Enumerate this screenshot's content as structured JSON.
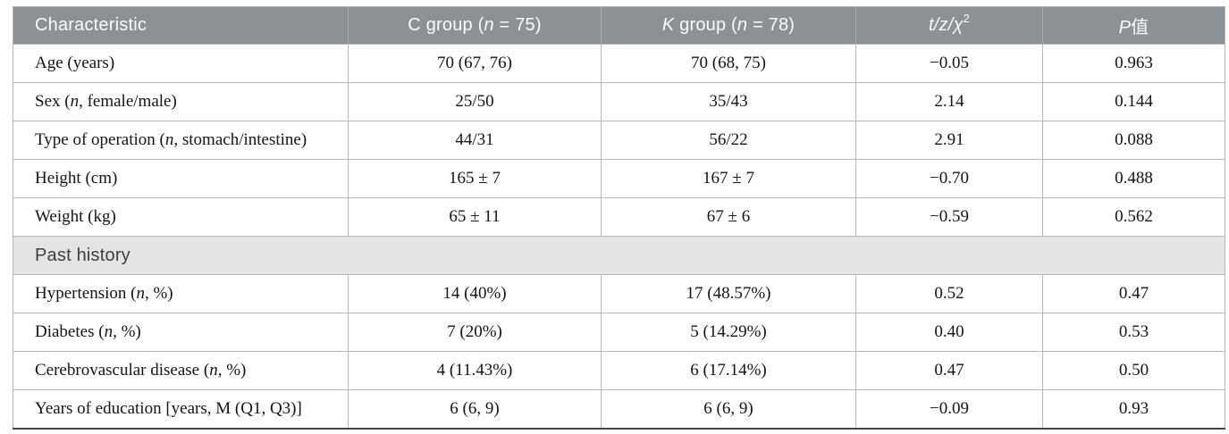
{
  "colors": {
    "header_bg": "#8c9196",
    "header_text": "#fafbfb",
    "header_divider": "#a9adb1",
    "section_bg": "#e3e4e5",
    "section_text": "#3e3e3e",
    "grid_line": "#b5b9bc",
    "bottom_border": "#45484a",
    "body_text": "#141414"
  },
  "table": {
    "columns": [
      {
        "id": "characteristic",
        "align": "left",
        "segments": [
          {
            "t": "Characteristic"
          }
        ]
      },
      {
        "id": "c-group",
        "align": "center",
        "segments": [
          {
            "t": "C group ("
          },
          {
            "t": "n",
            "i": true
          },
          {
            "t": " = 75)"
          }
        ]
      },
      {
        "id": "k-group",
        "align": "center",
        "segments": [
          {
            "t": "K",
            "i": true
          },
          {
            "t": " group ("
          },
          {
            "t": "n",
            "i": true
          },
          {
            "t": " = 78)"
          }
        ]
      },
      {
        "id": "statistic",
        "align": "center",
        "segments": [
          {
            "t": "t/z/χ",
            "i": true
          },
          {
            "t": "2",
            "sup": true
          }
        ]
      },
      {
        "id": "p-value",
        "align": "center",
        "segments": [
          {
            "t": "P",
            "i": true
          },
          {
            "t": "值"
          }
        ]
      }
    ],
    "rows": [
      {
        "type": "data",
        "label": [
          {
            "t": "Age (years)"
          }
        ],
        "values": [
          "70 (67, 76)",
          "70 (68, 75)",
          "−0.05",
          "0.963"
        ]
      },
      {
        "type": "data",
        "label": [
          {
            "t": "Sex ("
          },
          {
            "t": "n",
            "i": true
          },
          {
            "t": ", female/male)"
          }
        ],
        "values": [
          "25/50",
          "35/43",
          "2.14",
          "0.144"
        ]
      },
      {
        "type": "data",
        "label": [
          {
            "t": "Type of operation ("
          },
          {
            "t": "n",
            "i": true
          },
          {
            "t": ", stomach/intestine)"
          }
        ],
        "values": [
          "44/31",
          "56/22",
          "2.91",
          "0.088"
        ]
      },
      {
        "type": "data",
        "label": [
          {
            "t": "Height (cm)"
          }
        ],
        "values": [
          "165 ± 7",
          "167 ± 7",
          "−0.70",
          "0.488"
        ]
      },
      {
        "type": "data",
        "label": [
          {
            "t": "Weight (kg)"
          }
        ],
        "values": [
          "65 ± 11",
          "67 ± 6",
          "−0.59",
          "0.562"
        ]
      },
      {
        "type": "section",
        "label": [
          {
            "t": "Past history"
          }
        ]
      },
      {
        "type": "data",
        "label": [
          {
            "t": "Hypertension ("
          },
          {
            "t": "n",
            "i": true
          },
          {
            "t": ", %)"
          }
        ],
        "values": [
          "14 (40%)",
          "17 (48.57%)",
          "0.52",
          "0.47"
        ]
      },
      {
        "type": "data",
        "label": [
          {
            "t": "Diabetes ("
          },
          {
            "t": "n",
            "i": true
          },
          {
            "t": ", %)"
          }
        ],
        "values": [
          "7 (20%)",
          "5 (14.29%)",
          "0.40",
          "0.53"
        ]
      },
      {
        "type": "data",
        "label": [
          {
            "t": "Cerebrovascular disease ("
          },
          {
            "t": "n",
            "i": true
          },
          {
            "t": ", %)"
          }
        ],
        "values": [
          "4 (11.43%)",
          "6 (17.14%)",
          "0.47",
          "0.50"
        ]
      },
      {
        "type": "data",
        "label": [
          {
            "t": "Years of education [years, M (Q1, Q3)]"
          }
        ],
        "values": [
          "6 (6, 9)",
          "6 (6, 9)",
          "−0.09",
          "0.93"
        ]
      }
    ]
  }
}
